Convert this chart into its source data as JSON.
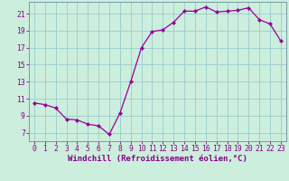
{
  "x": [
    0,
    1,
    2,
    3,
    4,
    5,
    6,
    7,
    8,
    9,
    10,
    11,
    12,
    13,
    14,
    15,
    16,
    17,
    18,
    19,
    20,
    21,
    22,
    23
  ],
  "y": [
    10.5,
    10.3,
    9.9,
    8.6,
    8.5,
    8.0,
    7.8,
    6.8,
    9.3,
    13.0,
    17.0,
    18.9,
    19.1,
    20.0,
    21.3,
    21.3,
    21.8,
    21.2,
    21.3,
    21.4,
    21.7,
    20.3,
    19.8,
    17.8
  ],
  "line_color": "#990099",
  "marker": "D",
  "marker_size": 2.2,
  "bg_color": "#cceedd",
  "grid_color": "#99cccc",
  "xlabel": "Windchill (Refroidissement éolien,°C)",
  "xlim": [
    -0.5,
    23.5
  ],
  "ylim": [
    6,
    22.4
  ],
  "yticks": [
    7,
    9,
    11,
    13,
    15,
    17,
    19,
    21
  ],
  "xticks": [
    0,
    1,
    2,
    3,
    4,
    5,
    6,
    7,
    8,
    9,
    10,
    11,
    12,
    13,
    14,
    15,
    16,
    17,
    18,
    19,
    20,
    21,
    22,
    23
  ],
  "font_color": "#880088",
  "spine_color": "#7799aa",
  "axis_label_fontsize": 6.5,
  "tick_fontsize": 5.8
}
